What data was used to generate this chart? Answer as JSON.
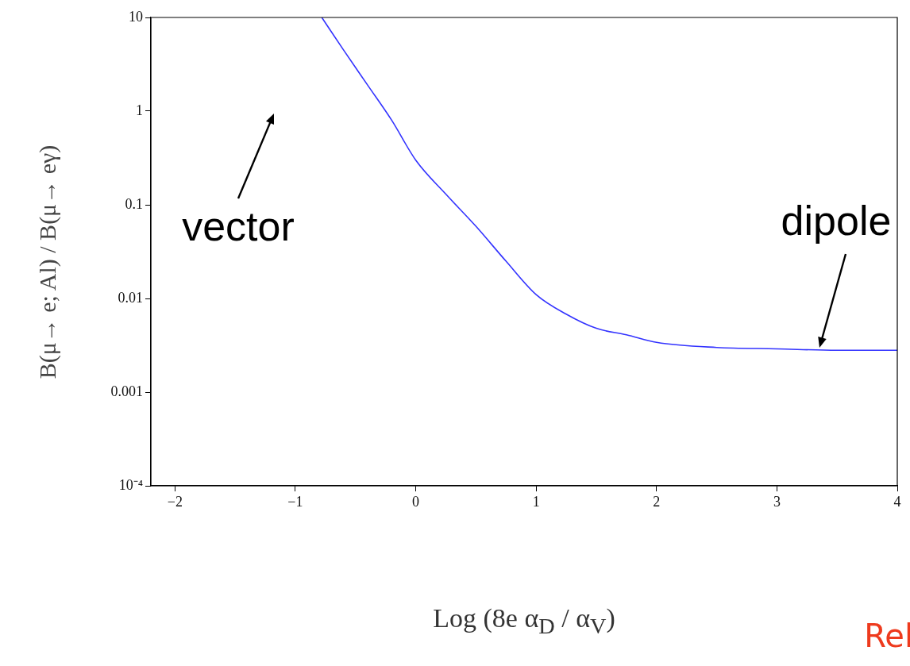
{
  "chart_data": {
    "type": "line",
    "xlabel": "Log (8e α$_{D}$ / α$_{V}$)",
    "ylabel": "B(μ→ e; Al) / B(μ→ eγ)",
    "log": "y",
    "legend": false,
    "marker": "none",
    "line_style": "solid",
    "xlim": [
      -2.2,
      4
    ],
    "xticks": [
      {
        "value": -2,
        "label": "−2"
      },
      {
        "value": -1,
        "label": "−1"
      },
      0,
      1,
      2,
      3,
      4
    ],
    "ylim": [
      0.0001,
      10
    ],
    "yticks": [
      {
        "value": 0.0001,
        "label": "10⁻⁴"
      },
      0.001,
      0.01,
      0.1,
      1,
      10
    ],
    "series": [
      {
        "color": "#3333ff",
        "x": [
          -0.78,
          -0.6,
          -0.4,
          -0.2,
          0,
          0.25,
          0.5,
          0.75,
          1,
          1.25,
          1.5,
          1.75,
          2,
          2.5,
          3,
          3.5,
          4
        ],
        "values": [
          10,
          4.5,
          1.9,
          0.8,
          0.3,
          0.13,
          0.059,
          0.025,
          0.011,
          0.0068,
          0.0048,
          0.0041,
          0.0034,
          0.003,
          0.0029,
          0.0028,
          0.0028
        ]
      }
    ],
    "annotations": [
      "vector",
      "dipole",
      "Rel"
    ]
  }
}
